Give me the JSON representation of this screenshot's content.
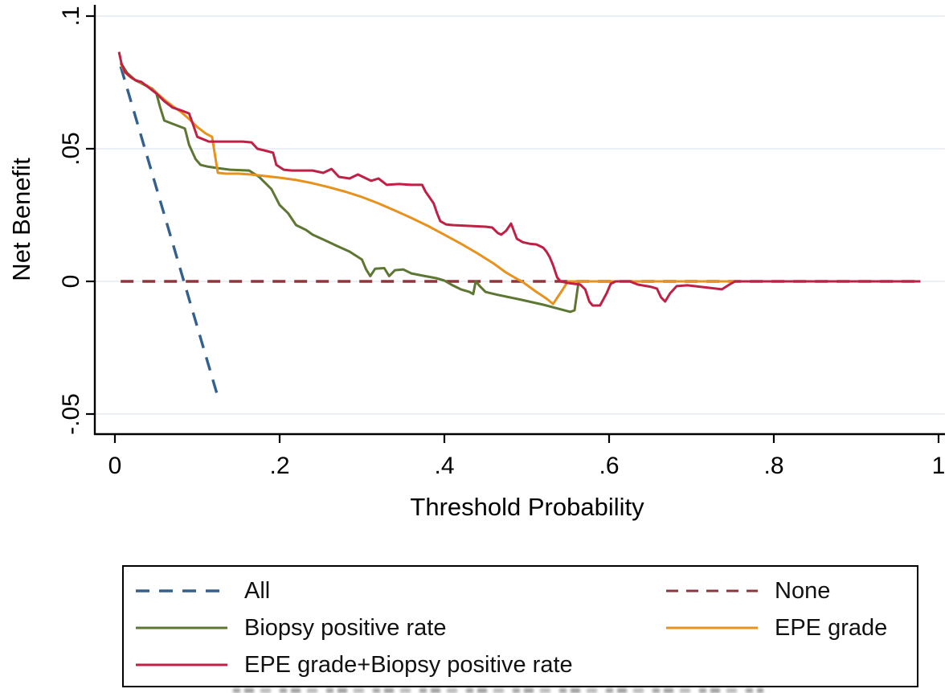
{
  "chart_data": {
    "type": "line",
    "title": "",
    "xlabel": "Threshold Probability",
    "ylabel": "Net Benefit",
    "xlim": [
      0,
      1
    ],
    "ylim": [
      -0.062,
      0.104
    ],
    "grid": "horizontal-only",
    "legend_position": "bottom-box-two-columns",
    "x_ticks": [
      "0",
      ".2",
      ".4",
      ".6",
      ".8",
      "1"
    ],
    "x_tick_values": [
      0,
      0.2,
      0.4,
      0.6,
      0.8,
      1
    ],
    "y_ticks": [
      ".1",
      ".05",
      "0",
      "-.05"
    ],
    "y_tick_values": [
      0.1,
      0.05,
      0,
      -0.05
    ],
    "series": [
      {
        "name": "All",
        "color": "#34608f",
        "style": "dashed",
        "dash": "17 12",
        "points": [
          [
            0.007,
            0.081
          ],
          [
            0.126,
            -0.0445
          ]
        ]
      },
      {
        "name": "None",
        "color": "#90353b",
        "style": "dashed",
        "dash": "16 11",
        "points": [
          [
            0.007,
            0.0
          ],
          [
            0.98,
            0.0
          ]
        ]
      },
      {
        "name": "Biopsy positive rate",
        "color": "#5d7733",
        "style": "solid",
        "points": [
          [
            0.007,
            0.0824
          ],
          [
            0.015,
            0.0785
          ],
          [
            0.025,
            0.0758
          ],
          [
            0.035,
            0.0742
          ],
          [
            0.045,
            0.0727
          ],
          [
            0.05,
            0.0712
          ],
          [
            0.055,
            0.0655
          ],
          [
            0.06,
            0.0606
          ],
          [
            0.07,
            0.0594
          ],
          [
            0.08,
            0.0582
          ],
          [
            0.085,
            0.0576
          ],
          [
            0.09,
            0.0515
          ],
          [
            0.098,
            0.0461
          ],
          [
            0.104,
            0.0439
          ],
          [
            0.112,
            0.0433
          ],
          [
            0.125,
            0.0427
          ],
          [
            0.14,
            0.0421
          ],
          [
            0.163,
            0.0418
          ],
          [
            0.175,
            0.0394
          ],
          [
            0.19,
            0.0348
          ],
          [
            0.2,
            0.0288
          ],
          [
            0.21,
            0.0258
          ],
          [
            0.22,
            0.0212
          ],
          [
            0.232,
            0.0194
          ],
          [
            0.24,
            0.0176
          ],
          [
            0.255,
            0.0155
          ],
          [
            0.27,
            0.0133
          ],
          [
            0.285,
            0.0112
          ],
          [
            0.3,
            0.0082
          ],
          [
            0.305,
            0.0045
          ],
          [
            0.31,
            0.002
          ],
          [
            0.316,
            0.0048
          ],
          [
            0.327,
            0.005
          ],
          [
            0.333,
            0.002
          ],
          [
            0.34,
            0.0042
          ],
          [
            0.35,
            0.0045
          ],
          [
            0.36,
            0.003
          ],
          [
            0.375,
            0.0021
          ],
          [
            0.39,
            0.0012
          ],
          [
            0.4,
            0.0003
          ],
          [
            0.41,
            -0.0015
          ],
          [
            0.42,
            -0.003
          ],
          [
            0.43,
            -0.0039
          ],
          [
            0.435,
            -0.0048
          ],
          [
            0.438,
            0.0
          ],
          [
            0.443,
            -0.0018
          ],
          [
            0.45,
            -0.004
          ],
          [
            0.465,
            -0.0051
          ],
          [
            0.49,
            -0.0067
          ],
          [
            0.52,
            -0.0088
          ],
          [
            0.553,
            -0.0115
          ],
          [
            0.558,
            -0.0109
          ],
          [
            0.563,
            0.0
          ],
          [
            0.6,
            0.0
          ]
        ]
      },
      {
        "name": "EPE grade",
        "color": "#e8921e",
        "style": "solid",
        "points": [
          [
            0.007,
            0.0821
          ],
          [
            0.012,
            0.0788
          ],
          [
            0.02,
            0.0767
          ],
          [
            0.03,
            0.0752
          ],
          [
            0.04,
            0.0736
          ],
          [
            0.05,
            0.0712
          ],
          [
            0.06,
            0.0685
          ],
          [
            0.07,
            0.0661
          ],
          [
            0.08,
            0.0639
          ],
          [
            0.09,
            0.0612
          ],
          [
            0.1,
            0.0582
          ],
          [
            0.11,
            0.0558
          ],
          [
            0.118,
            0.0545
          ],
          [
            0.125,
            0.0409
          ],
          [
            0.135,
            0.0406
          ],
          [
            0.15,
            0.0406
          ],
          [
            0.165,
            0.0403
          ],
          [
            0.18,
            0.0398
          ],
          [
            0.2,
            0.0391
          ],
          [
            0.22,
            0.0382
          ],
          [
            0.24,
            0.037
          ],
          [
            0.26,
            0.0355
          ],
          [
            0.28,
            0.0338
          ],
          [
            0.3,
            0.0318
          ],
          [
            0.32,
            0.0294
          ],
          [
            0.34,
            0.0267
          ],
          [
            0.36,
            0.0239
          ],
          [
            0.38,
            0.0209
          ],
          [
            0.4,
            0.0176
          ],
          [
            0.42,
            0.0142
          ],
          [
            0.44,
            0.0106
          ],
          [
            0.46,
            0.0067
          ],
          [
            0.475,
            0.0033
          ],
          [
            0.49,
            0.0006
          ],
          [
            0.494,
            0.0
          ],
          [
            0.51,
            -0.0036
          ],
          [
            0.525,
            -0.0067
          ],
          [
            0.532,
            -0.0085
          ],
          [
            0.54,
            -0.0048
          ],
          [
            0.55,
            0.0
          ],
          [
            0.978,
            0.0
          ]
        ]
      },
      {
        "name": "EPE grade+Biopsy positive rate",
        "color": "#bf2146",
        "style": "solid",
        "points": [
          [
            0.005,
            0.0865
          ],
          [
            0.008,
            0.0821
          ],
          [
            0.012,
            0.0791
          ],
          [
            0.018,
            0.0773
          ],
          [
            0.025,
            0.0758
          ],
          [
            0.032,
            0.0752
          ],
          [
            0.04,
            0.0733
          ],
          [
            0.05,
            0.0709
          ],
          [
            0.06,
            0.0679
          ],
          [
            0.07,
            0.0655
          ],
          [
            0.08,
            0.0645
          ],
          [
            0.09,
            0.0633
          ],
          [
            0.095,
            0.059
          ],
          [
            0.1,
            0.0545
          ],
          [
            0.114,
            0.0527
          ],
          [
            0.155,
            0.0527
          ],
          [
            0.166,
            0.0524
          ],
          [
            0.173,
            0.05
          ],
          [
            0.185,
            0.0491
          ],
          [
            0.192,
            0.0485
          ],
          [
            0.196,
            0.0439
          ],
          [
            0.205,
            0.0421
          ],
          [
            0.215,
            0.0418
          ],
          [
            0.24,
            0.0418
          ],
          [
            0.253,
            0.0409
          ],
          [
            0.263,
            0.0424
          ],
          [
            0.272,
            0.0394
          ],
          [
            0.285,
            0.0388
          ],
          [
            0.295,
            0.0403
          ],
          [
            0.311,
            0.0379
          ],
          [
            0.32,
            0.0388
          ],
          [
            0.33,
            0.0364
          ],
          [
            0.345,
            0.0367
          ],
          [
            0.36,
            0.0364
          ],
          [
            0.373,
            0.0364
          ],
          [
            0.377,
            0.0339
          ],
          [
            0.383,
            0.0312
          ],
          [
            0.387,
            0.0294
          ],
          [
            0.391,
            0.0258
          ],
          [
            0.395,
            0.0227
          ],
          [
            0.402,
            0.0215
          ],
          [
            0.41,
            0.0212
          ],
          [
            0.43,
            0.0209
          ],
          [
            0.45,
            0.0206
          ],
          [
            0.458,
            0.0203
          ],
          [
            0.465,
            0.0182
          ],
          [
            0.469,
            0.0176
          ],
          [
            0.475,
            0.0191
          ],
          [
            0.481,
            0.0218
          ],
          [
            0.488,
            0.0161
          ],
          [
            0.495,
            0.0148
          ],
          [
            0.503,
            0.0142
          ],
          [
            0.512,
            0.0139
          ],
          [
            0.52,
            0.0127
          ],
          [
            0.524,
            0.0112
          ],
          [
            0.528,
            0.0091
          ],
          [
            0.532,
            0.0061
          ],
          [
            0.537,
            0.0015
          ],
          [
            0.541,
            0.0
          ],
          [
            0.55,
            -0.0006
          ],
          [
            0.565,
            -0.0012
          ],
          [
            0.571,
            -0.003
          ],
          [
            0.576,
            -0.0076
          ],
          [
            0.58,
            -0.0091
          ],
          [
            0.589,
            -0.0091
          ],
          [
            0.597,
            -0.0045
          ],
          [
            0.602,
            -0.0009
          ],
          [
            0.608,
            0.0
          ],
          [
            0.625,
            0.0
          ],
          [
            0.635,
            -0.0012
          ],
          [
            0.65,
            -0.002
          ],
          [
            0.658,
            -0.0027
          ],
          [
            0.663,
            -0.006
          ],
          [
            0.668,
            -0.0076
          ],
          [
            0.674,
            -0.0045
          ],
          [
            0.682,
            -0.0018
          ],
          [
            0.695,
            -0.0015
          ],
          [
            0.71,
            -0.002
          ],
          [
            0.737,
            -0.003
          ],
          [
            0.746,
            -0.0012
          ],
          [
            0.753,
            0.0
          ],
          [
            0.978,
            0.0
          ]
        ]
      }
    ]
  },
  "legend": {
    "entries": [
      {
        "label": "All"
      },
      {
        "label": "None"
      },
      {
        "label": "Biopsy positive rate"
      },
      {
        "label": "EPE grade"
      },
      {
        "label": "EPE grade+Biopsy positive rate"
      }
    ]
  }
}
